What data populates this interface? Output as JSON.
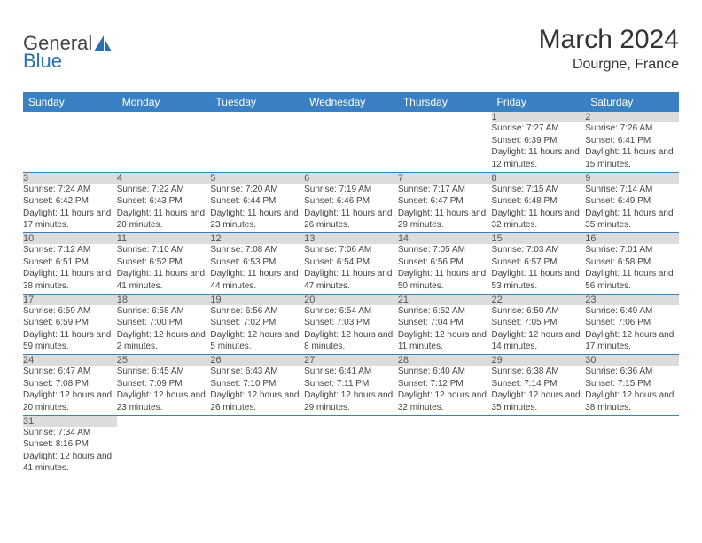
{
  "brand": {
    "part1": "General",
    "part2": "Blue",
    "accent_color": "#2a6fb5"
  },
  "title": "March 2024",
  "location": "Dourgne, France",
  "header_bg": "#3a81c4",
  "daynum_bg": "#dcdcdc",
  "dow": [
    "Sunday",
    "Monday",
    "Tuesday",
    "Wednesday",
    "Thursday",
    "Friday",
    "Saturday"
  ],
  "weeks": [
    [
      null,
      null,
      null,
      null,
      null,
      {
        "n": "1",
        "sr": "7:27 AM",
        "ss": "6:39 PM",
        "dl": "11 hours and 12 minutes."
      },
      {
        "n": "2",
        "sr": "7:26 AM",
        "ss": "6:41 PM",
        "dl": "11 hours and 15 minutes."
      }
    ],
    [
      {
        "n": "3",
        "sr": "7:24 AM",
        "ss": "6:42 PM",
        "dl": "11 hours and 17 minutes."
      },
      {
        "n": "4",
        "sr": "7:22 AM",
        "ss": "6:43 PM",
        "dl": "11 hours and 20 minutes."
      },
      {
        "n": "5",
        "sr": "7:20 AM",
        "ss": "6:44 PM",
        "dl": "11 hours and 23 minutes."
      },
      {
        "n": "6",
        "sr": "7:19 AM",
        "ss": "6:46 PM",
        "dl": "11 hours and 26 minutes."
      },
      {
        "n": "7",
        "sr": "7:17 AM",
        "ss": "6:47 PM",
        "dl": "11 hours and 29 minutes."
      },
      {
        "n": "8",
        "sr": "7:15 AM",
        "ss": "6:48 PM",
        "dl": "11 hours and 32 minutes."
      },
      {
        "n": "9",
        "sr": "7:14 AM",
        "ss": "6:49 PM",
        "dl": "11 hours and 35 minutes."
      }
    ],
    [
      {
        "n": "10",
        "sr": "7:12 AM",
        "ss": "6:51 PM",
        "dl": "11 hours and 38 minutes."
      },
      {
        "n": "11",
        "sr": "7:10 AM",
        "ss": "6:52 PM",
        "dl": "11 hours and 41 minutes."
      },
      {
        "n": "12",
        "sr": "7:08 AM",
        "ss": "6:53 PM",
        "dl": "11 hours and 44 minutes."
      },
      {
        "n": "13",
        "sr": "7:06 AM",
        "ss": "6:54 PM",
        "dl": "11 hours and 47 minutes."
      },
      {
        "n": "14",
        "sr": "7:05 AM",
        "ss": "6:56 PM",
        "dl": "11 hours and 50 minutes."
      },
      {
        "n": "15",
        "sr": "7:03 AM",
        "ss": "6:57 PM",
        "dl": "11 hours and 53 minutes."
      },
      {
        "n": "16",
        "sr": "7:01 AM",
        "ss": "6:58 PM",
        "dl": "11 hours and 56 minutes."
      }
    ],
    [
      {
        "n": "17",
        "sr": "6:59 AM",
        "ss": "6:59 PM",
        "dl": "11 hours and 59 minutes."
      },
      {
        "n": "18",
        "sr": "6:58 AM",
        "ss": "7:00 PM",
        "dl": "12 hours and 2 minutes."
      },
      {
        "n": "19",
        "sr": "6:56 AM",
        "ss": "7:02 PM",
        "dl": "12 hours and 5 minutes."
      },
      {
        "n": "20",
        "sr": "6:54 AM",
        "ss": "7:03 PM",
        "dl": "12 hours and 8 minutes."
      },
      {
        "n": "21",
        "sr": "6:52 AM",
        "ss": "7:04 PM",
        "dl": "12 hours and 11 minutes."
      },
      {
        "n": "22",
        "sr": "6:50 AM",
        "ss": "7:05 PM",
        "dl": "12 hours and 14 minutes."
      },
      {
        "n": "23",
        "sr": "6:49 AM",
        "ss": "7:06 PM",
        "dl": "12 hours and 17 minutes."
      }
    ],
    [
      {
        "n": "24",
        "sr": "6:47 AM",
        "ss": "7:08 PM",
        "dl": "12 hours and 20 minutes."
      },
      {
        "n": "25",
        "sr": "6:45 AM",
        "ss": "7:09 PM",
        "dl": "12 hours and 23 minutes."
      },
      {
        "n": "26",
        "sr": "6:43 AM",
        "ss": "7:10 PM",
        "dl": "12 hours and 26 minutes."
      },
      {
        "n": "27",
        "sr": "6:41 AM",
        "ss": "7:11 PM",
        "dl": "12 hours and 29 minutes."
      },
      {
        "n": "28",
        "sr": "6:40 AM",
        "ss": "7:12 PM",
        "dl": "12 hours and 32 minutes."
      },
      {
        "n": "29",
        "sr": "6:38 AM",
        "ss": "7:14 PM",
        "dl": "12 hours and 35 minutes."
      },
      {
        "n": "30",
        "sr": "6:36 AM",
        "ss": "7:15 PM",
        "dl": "12 hours and 38 minutes."
      }
    ],
    [
      {
        "n": "31",
        "sr": "7:34 AM",
        "ss": "8:16 PM",
        "dl": "12 hours and 41 minutes."
      },
      null,
      null,
      null,
      null,
      null,
      null
    ]
  ],
  "labels": {
    "sunrise": "Sunrise:",
    "sunset": "Sunset:",
    "daylight": "Daylight:"
  }
}
